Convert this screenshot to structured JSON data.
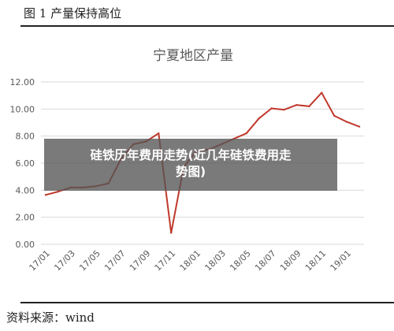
{
  "figure": {
    "caption": "图 1  产量保持高位",
    "source": "资料来源：wind"
  },
  "overlay": {
    "line1": "硅铁历年费用走势(近几年硅铁费用走",
    "line2": "势图)"
  },
  "colors": {
    "series": "#c0392b",
    "grid": "#d9d9d9",
    "axis_text": "#595959",
    "title_text": "#595959"
  },
  "chart_data": {
    "type": "line",
    "title": "宁夏地区产量",
    "xlabel": "",
    "ylabel": "",
    "ylim": [
      0,
      12
    ],
    "y_ticks": [
      "0.00",
      "2.00",
      "4.00",
      "6.00",
      "8.00",
      "10.00",
      "12.00"
    ],
    "grid": true,
    "x_ticks": [
      "17/01",
      "17/03",
      "17/05",
      "17/07",
      "17/09",
      "17/11",
      "18/01",
      "18/03",
      "18/05",
      "18/07",
      "18/09",
      "18/11",
      "19/01"
    ],
    "series": [
      {
        "x": [
          "17/01",
          "17/02",
          "17/03",
          "17/04",
          "17/05",
          "17/06",
          "17/07",
          "17/08",
          "17/09",
          "17/10",
          "17/11",
          "17/12",
          "18/01",
          "18/02",
          "18/03",
          "18/04",
          "18/05",
          "18/06",
          "18/07",
          "18/08",
          "18/09",
          "18/10",
          "18/11",
          "18/12",
          "19/01",
          "19/02"
        ],
        "values": [
          3.65,
          3.9,
          4.2,
          4.2,
          4.3,
          4.5,
          6.3,
          7.4,
          7.6,
          8.2,
          0.85,
          5.7,
          6.9,
          7.0,
          7.4,
          7.8,
          8.2,
          9.3,
          10.05,
          9.95,
          10.3,
          10.2,
          11.2,
          9.5,
          9.05,
          8.7
        ]
      }
    ]
  }
}
